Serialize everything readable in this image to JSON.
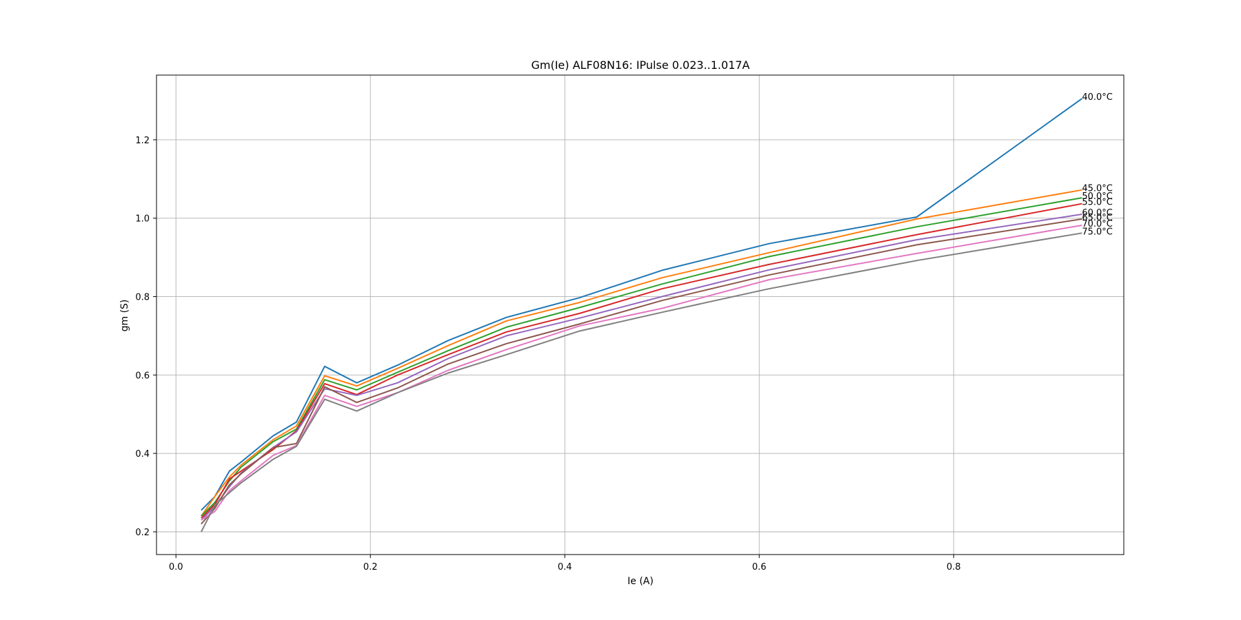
{
  "chart_data": {
    "type": "line",
    "title": "Gm(Ie) ALF08N16: IPulse 0.023..1.017A",
    "xlabel": "Ie (A)",
    "ylabel": "gm (S)",
    "xlim": [
      -0.02,
      0.975
    ],
    "ylim": [
      0.142,
      1.365
    ],
    "xticks": [
      0.0,
      0.2,
      0.4,
      0.6,
      0.8
    ],
    "xtick_labels": [
      "0.0",
      "0.2",
      "0.4",
      "0.6",
      "0.8"
    ],
    "yticks": [
      0.2,
      0.4,
      0.6,
      0.8,
      1.0,
      1.2
    ],
    "ytick_labels": [
      "0.2",
      "0.4",
      "0.6",
      "0.8",
      "1.0",
      "1.2"
    ],
    "grid": true,
    "series_labels_at_end": true,
    "series": [
      {
        "name": "40.0°C",
        "color": "#1f77b4",
        "x": [
          0.026,
          0.04,
          0.055,
          0.067,
          0.1,
          0.124,
          0.153,
          0.186,
          0.228,
          0.28,
          0.34,
          0.415,
          0.5,
          0.61,
          0.762,
          0.932
        ],
        "y": [
          0.255,
          0.29,
          0.355,
          0.378,
          0.445,
          0.48,
          0.622,
          0.58,
          0.625,
          0.688,
          0.747,
          0.797,
          0.867,
          0.935,
          1.003,
          1.305
        ]
      },
      {
        "name": "45.0°C",
        "color": "#ff7f0e",
        "x": [
          0.026,
          0.04,
          0.055,
          0.067,
          0.1,
          0.124,
          0.153,
          0.186,
          0.228,
          0.28,
          0.34,
          0.415,
          0.5,
          0.61,
          0.762,
          0.932
        ],
        "y": [
          0.24,
          0.29,
          0.34,
          0.37,
          0.435,
          0.47,
          0.598,
          0.572,
          0.617,
          0.675,
          0.738,
          0.785,
          0.848,
          0.912,
          0.998,
          1.072
        ]
      },
      {
        "name": "50.0°C",
        "color": "#2ca02c",
        "x": [
          0.026,
          0.04,
          0.055,
          0.067,
          0.1,
          0.124,
          0.153,
          0.186,
          0.228,
          0.28,
          0.34,
          0.415,
          0.5,
          0.61,
          0.762,
          0.932
        ],
        "y": [
          0.24,
          0.275,
          0.33,
          0.365,
          0.43,
          0.462,
          0.588,
          0.562,
          0.607,
          0.662,
          0.722,
          0.772,
          0.832,
          0.902,
          0.978,
          1.052
        ]
      },
      {
        "name": "55.0°C",
        "color": "#d62728",
        "x": [
          0.026,
          0.04,
          0.055,
          0.067,
          0.1,
          0.124,
          0.153,
          0.186,
          0.228,
          0.28,
          0.34,
          0.415,
          0.5,
          0.61,
          0.762,
          0.932
        ],
        "y": [
          0.235,
          0.27,
          0.335,
          0.355,
          0.41,
          0.458,
          0.578,
          0.55,
          0.6,
          0.652,
          0.71,
          0.757,
          0.82,
          0.882,
          0.958,
          1.037
        ]
      },
      {
        "name": "60.0°C",
        "color": "#9467bd",
        "x": [
          0.026,
          0.04,
          0.055,
          0.067,
          0.1,
          0.124,
          0.153,
          0.186,
          0.228,
          0.28,
          0.34,
          0.415,
          0.5,
          0.61,
          0.762,
          0.932
        ],
        "y": [
          0.23,
          0.265,
          0.315,
          0.35,
          0.415,
          0.455,
          0.565,
          0.548,
          0.58,
          0.642,
          0.7,
          0.745,
          0.8,
          0.868,
          0.945,
          1.01
        ]
      },
      {
        "name": "65.0°C",
        "color": "#8c564b",
        "x": [
          0.026,
          0.04,
          0.055,
          0.067,
          0.1,
          0.124,
          0.153,
          0.186,
          0.228,
          0.28,
          0.34,
          0.415,
          0.5,
          0.61,
          0.762,
          0.932
        ],
        "y": [
          0.22,
          0.26,
          0.32,
          0.348,
          0.415,
          0.425,
          0.57,
          0.53,
          0.567,
          0.628,
          0.68,
          0.73,
          0.79,
          0.855,
          0.932,
          0.998
        ]
      },
      {
        "name": "70.0°C",
        "color": "#e377c2",
        "x": [
          0.026,
          0.04,
          0.055,
          0.067,
          0.1,
          0.124,
          0.153,
          0.186,
          0.228,
          0.28,
          0.34,
          0.415,
          0.5,
          0.61,
          0.762,
          0.932
        ],
        "y": [
          0.23,
          0.252,
          0.305,
          0.33,
          0.395,
          0.42,
          0.548,
          0.52,
          0.555,
          0.612,
          0.665,
          0.725,
          0.77,
          0.843,
          0.91,
          0.982
        ]
      },
      {
        "name": "75.0°C",
        "color": "#7f7f7f",
        "x": [
          0.026,
          0.04,
          0.055,
          0.067,
          0.1,
          0.124,
          0.153,
          0.186,
          0.228,
          0.28,
          0.34,
          0.415,
          0.5,
          0.61,
          0.762,
          0.932
        ],
        "y": [
          0.2,
          0.268,
          0.3,
          0.325,
          0.385,
          0.418,
          0.538,
          0.508,
          0.555,
          0.605,
          0.652,
          0.712,
          0.76,
          0.82,
          0.892,
          0.962
        ]
      }
    ]
  }
}
